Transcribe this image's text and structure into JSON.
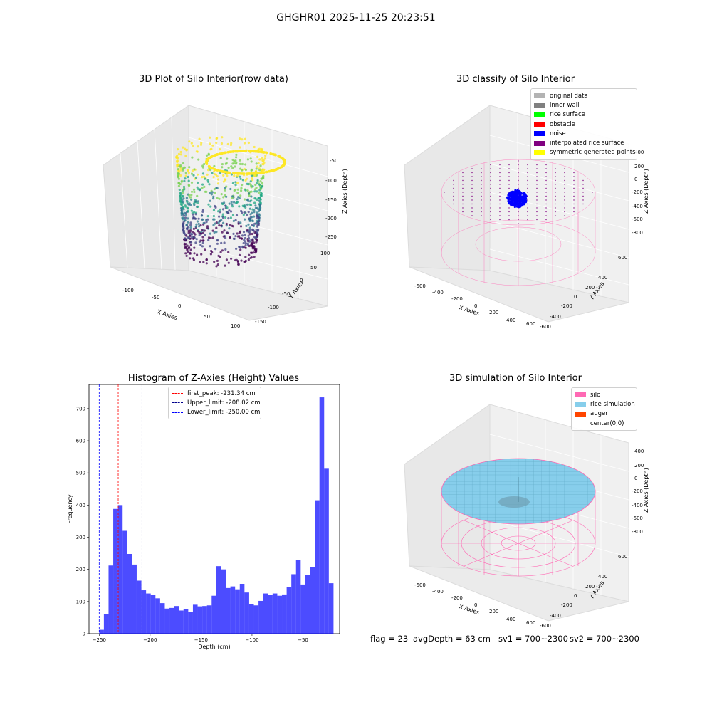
{
  "suptitle": "GHGHR01 2025-11-25 20:23:51",
  "panels": {
    "raw": {
      "title": "3D Plot of Silo Interior(row data)",
      "xlabel": "X Axies",
      "ylabel": "Y Axies",
      "zlabel": "Z Axies (Depth)",
      "xticks": [
        "-100",
        "-50",
        "0",
        "50",
        "100"
      ],
      "yticks": [
        "100",
        "50",
        "0",
        "-50",
        "-100",
        "-150"
      ],
      "zticks": [
        "-50",
        "-100",
        "-150",
        "-200",
        "-250"
      ]
    },
    "classify": {
      "title": "3D classify of Silo Interior",
      "xlabel": "X Axies",
      "ylabel": "Y Axies",
      "zlabel": "Z Axies (Depth)",
      "xticks": [
        "-600",
        "-400",
        "-200",
        "0",
        "200",
        "400",
        "600"
      ],
      "yticks": [
        "600",
        "400",
        "200",
        "0",
        "-200",
        "-400",
        "-600"
      ],
      "zticks": [
        "400",
        "200",
        "0",
        "-200",
        "-400",
        "-600",
        "-800"
      ]
    },
    "simulation": {
      "title": "3D simulation of Silo Interior",
      "xlabel": "X Axies",
      "ylabel": "Y Axies",
      "zlabel": "Z Axies (Depth)",
      "xticks": [
        "-600",
        "-400",
        "-200",
        "0",
        "200",
        "400",
        "600"
      ],
      "yticks": [
        "600",
        "400",
        "200",
        "0",
        "-200",
        "-400",
        "-600"
      ],
      "zticks": [
        "400",
        "200",
        "0",
        "-200",
        "-400",
        "-600",
        "-800"
      ]
    }
  },
  "classify_legend": [
    {
      "label": "original data",
      "color": "#b3b3b3"
    },
    {
      "label": "inner wall",
      "color": "#808080"
    },
    {
      "label": "rice surface",
      "color": "#00ff00"
    },
    {
      "label": "obstacle",
      "color": "#ff0000"
    },
    {
      "label": "noise",
      "color": "#0000ff"
    },
    {
      "label": "interpolated rice surface",
      "color": "#800080"
    },
    {
      "label": "symmetric generated points",
      "color": "#ffff00"
    }
  ],
  "simulation_legend": [
    {
      "label": "silo",
      "color": "#ff69b4"
    },
    {
      "label": "rice simulation",
      "color": "#87ceeb"
    },
    {
      "label": "auger",
      "color": "#ff4500"
    },
    {
      "label": "center(0,0)",
      "color": ""
    }
  ],
  "chart_data": {
    "type": "bar",
    "title": "Histogram of Z-Axies (Height) Values",
    "xlabel": "Depth (cm)",
    "ylabel": "Frequency",
    "xlim": [
      -260,
      -14
    ],
    "ylim": [
      0,
      775
    ],
    "xticks": [
      -250,
      -200,
      -150,
      -100,
      -50
    ],
    "yticks": [
      0,
      100,
      200,
      300,
      400,
      500,
      600,
      700
    ],
    "bar_color": "#0000ff",
    "bin_start": -250,
    "bin_width": 4.6,
    "values": [
      12,
      62,
      212,
      388,
      400,
      320,
      248,
      215,
      165,
      135,
      125,
      120,
      110,
      95,
      78,
      80,
      86,
      72,
      76,
      68,
      90,
      85,
      86,
      88,
      118,
      210,
      200,
      142,
      147,
      138,
      155,
      128,
      92,
      88,
      102,
      125,
      120,
      125,
      118,
      122,
      145,
      185,
      230,
      153,
      182,
      208,
      415,
      735,
      513,
      157
    ],
    "lines": [
      {
        "label": "first_peak: -231.34 cm",
        "x": -231.34,
        "color": "#ff0000"
      },
      {
        "label": "Upper_limit: -208.02 cm",
        "x": -208.02,
        "color": "#00008b"
      },
      {
        "label": "Lower_limit: -250.00 cm",
        "x": -250.0,
        "color": "#0000ff"
      }
    ],
    "legend_position": "top-center"
  },
  "status": {
    "flag": "flag = 23",
    "avg": "avgDepth = 63 cm",
    "sv1": "sv1 = 700~2300",
    "sv2": "sv2 = 700~2300"
  }
}
